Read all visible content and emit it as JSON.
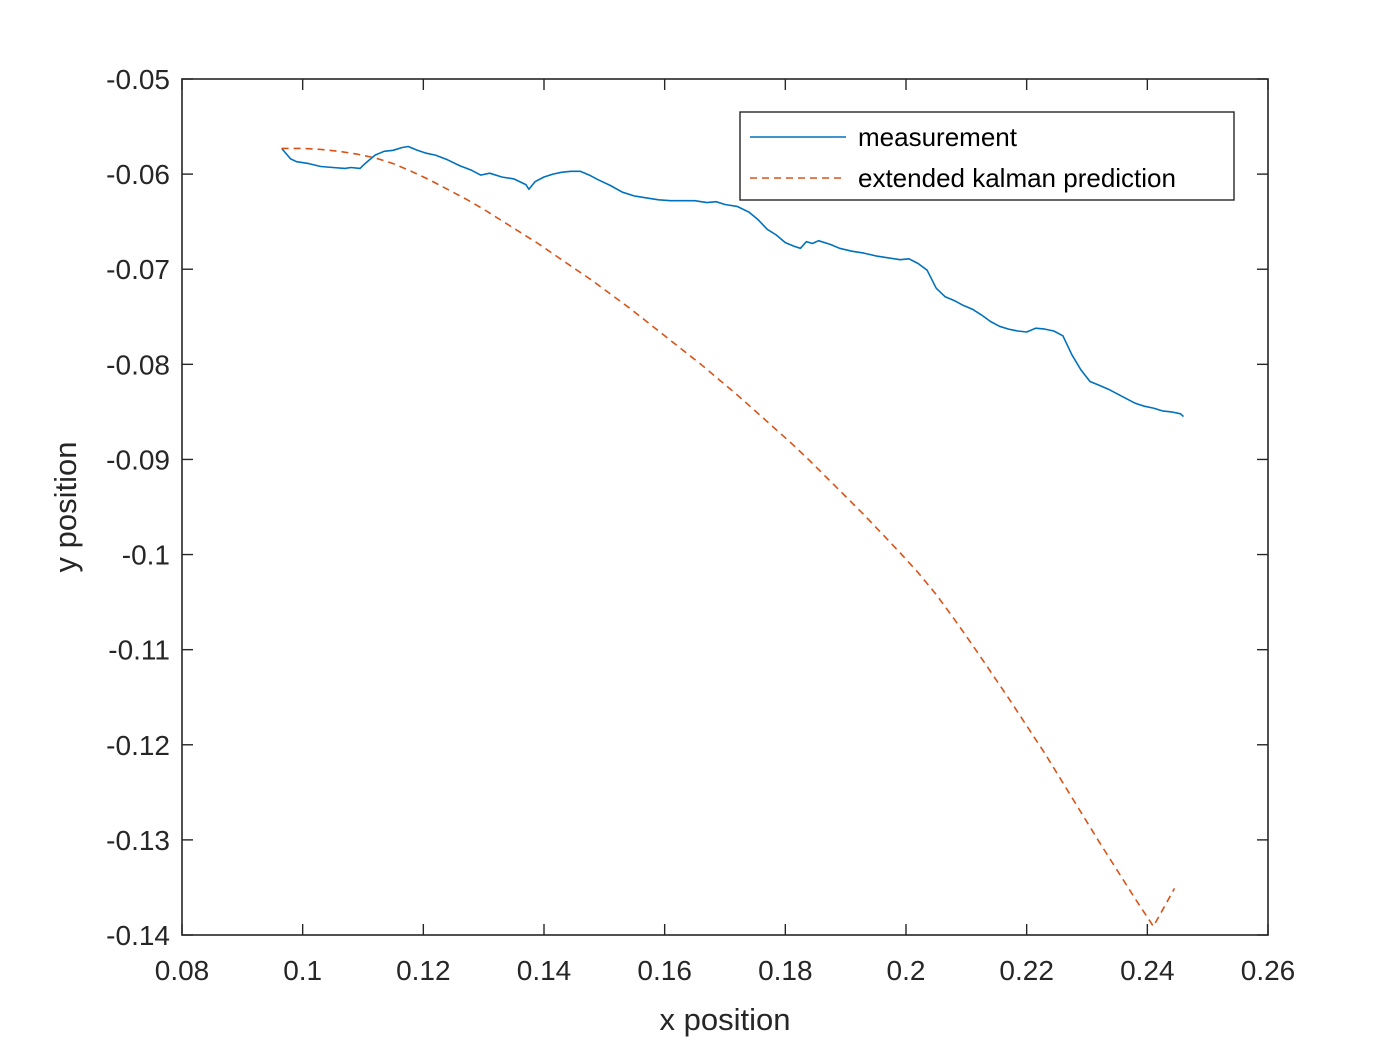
{
  "chart_data": {
    "type": "line",
    "title": "",
    "xlabel": "x position",
    "ylabel": "y position",
    "xlim": [
      0.08,
      0.26
    ],
    "ylim": [
      -0.14,
      -0.05
    ],
    "x_ticks": [
      0.08,
      0.1,
      0.12,
      0.14,
      0.16,
      0.18,
      0.2,
      0.22,
      0.24,
      0.26
    ],
    "x_tick_labels": [
      "0.08",
      "0.1",
      "0.12",
      "0.14",
      "0.16",
      "0.18",
      "0.2",
      "0.22",
      "0.24",
      "0.26"
    ],
    "y_ticks": [
      -0.05,
      -0.06,
      -0.07,
      -0.08,
      -0.09,
      -0.1,
      -0.11,
      -0.12,
      -0.13,
      -0.14
    ],
    "y_tick_labels": [
      "-0.05",
      "-0.06",
      "-0.07",
      "-0.08",
      "-0.09",
      "-0.1",
      "-0.11",
      "-0.12",
      "-0.13",
      "-0.14"
    ],
    "grid": false,
    "legend_position": "top-right",
    "series": [
      {
        "name": "measurement",
        "color": "#0072BD",
        "style": "solid",
        "x": [
          0.0965,
          0.098,
          0.099,
          0.101,
          0.103,
          0.105,
          0.107,
          0.108,
          0.1095,
          0.1105,
          0.112,
          0.1135,
          0.115,
          0.1165,
          0.1175,
          0.119,
          0.1205,
          0.122,
          0.124,
          0.126,
          0.128,
          0.1295,
          0.131,
          0.133,
          0.135,
          0.137,
          0.1375,
          0.1385,
          0.14,
          0.1415,
          0.143,
          0.1445,
          0.146,
          0.1475,
          0.149,
          0.151,
          0.153,
          0.155,
          0.157,
          0.159,
          0.161,
          0.163,
          0.165,
          0.167,
          0.1685,
          0.17,
          0.172,
          0.174,
          0.1755,
          0.177,
          0.1785,
          0.18,
          0.1815,
          0.1825,
          0.1835,
          0.1845,
          0.1855,
          0.1875,
          0.189,
          0.191,
          0.193,
          0.195,
          0.197,
          0.199,
          0.2005,
          0.202,
          0.2035,
          0.205,
          0.2065,
          0.208,
          0.2095,
          0.211,
          0.2125,
          0.214,
          0.2155,
          0.217,
          0.2185,
          0.22,
          0.2215,
          0.223,
          0.2245,
          0.226,
          0.2275,
          0.229,
          0.2305,
          0.232,
          0.2335,
          0.235,
          0.2365,
          0.238,
          0.2395,
          0.241,
          0.2425,
          0.244,
          0.2455,
          0.246
        ],
        "y": [
          -0.0573,
          -0.0584,
          -0.0587,
          -0.0589,
          -0.0592,
          -0.0593,
          -0.0594,
          -0.0593,
          -0.0594,
          -0.0588,
          -0.058,
          -0.0576,
          -0.0575,
          -0.0572,
          -0.0571,
          -0.0575,
          -0.0578,
          -0.058,
          -0.0585,
          -0.0591,
          -0.0596,
          -0.0601,
          -0.0599,
          -0.0603,
          -0.0605,
          -0.0611,
          -0.0616,
          -0.0608,
          -0.0603,
          -0.06,
          -0.0598,
          -0.0597,
          -0.0597,
          -0.0601,
          -0.0606,
          -0.0612,
          -0.0619,
          -0.0623,
          -0.0625,
          -0.0627,
          -0.0628,
          -0.0628,
          -0.0628,
          -0.063,
          -0.0629,
          -0.0632,
          -0.0634,
          -0.064,
          -0.0648,
          -0.0658,
          -0.0664,
          -0.0672,
          -0.0676,
          -0.0678,
          -0.0671,
          -0.0673,
          -0.067,
          -0.0674,
          -0.0678,
          -0.0681,
          -0.0683,
          -0.0686,
          -0.0688,
          -0.069,
          -0.0689,
          -0.0694,
          -0.0701,
          -0.072,
          -0.0729,
          -0.0733,
          -0.0738,
          -0.0742,
          -0.0748,
          -0.0755,
          -0.076,
          -0.0763,
          -0.0765,
          -0.0766,
          -0.0762,
          -0.0763,
          -0.0765,
          -0.077,
          -0.079,
          -0.0806,
          -0.0818,
          -0.0822,
          -0.0826,
          -0.0831,
          -0.0836,
          -0.0841,
          -0.0844,
          -0.0846,
          -0.0849,
          -0.085,
          -0.0852,
          -0.0855
        ]
      },
      {
        "name": "extended kalman prediction",
        "color": "#D95319",
        "style": "dashed",
        "x": [
          0.0965,
          0.1,
          0.103,
          0.106,
          0.109,
          0.112,
          0.115,
          0.118,
          0.121,
          0.124,
          0.127,
          0.13,
          0.133,
          0.136,
          0.139,
          0.142,
          0.145,
          0.148,
          0.151,
          0.154,
          0.157,
          0.16,
          0.163,
          0.166,
          0.169,
          0.172,
          0.175,
          0.178,
          0.181,
          0.184,
          0.187,
          0.19,
          0.193,
          0.196,
          0.199,
          0.202,
          0.205,
          0.208,
          0.211,
          0.214,
          0.217,
          0.22,
          0.223,
          0.226,
          0.229,
          0.232,
          0.235,
          0.238,
          0.241,
          0.2445
        ],
        "y": [
          -0.0573,
          -0.0573,
          -0.0574,
          -0.0576,
          -0.0579,
          -0.0583,
          -0.0589,
          -0.0597,
          -0.0606,
          -0.0616,
          -0.0626,
          -0.0637,
          -0.0649,
          -0.0661,
          -0.0673,
          -0.0686,
          -0.0699,
          -0.0712,
          -0.0726,
          -0.074,
          -0.0755,
          -0.077,
          -0.0785,
          -0.08,
          -0.0816,
          -0.0832,
          -0.0849,
          -0.0866,
          -0.0883,
          -0.0901,
          -0.092,
          -0.0939,
          -0.0958,
          -0.0978,
          -0.0998,
          -0.1019,
          -0.1042,
          -0.1068,
          -0.1095,
          -0.1123,
          -0.1151,
          -0.118,
          -0.1209,
          -0.124,
          -0.1271,
          -0.1302,
          -0.1332,
          -0.1362,
          -0.1391,
          -0.1351
        ]
      }
    ]
  }
}
